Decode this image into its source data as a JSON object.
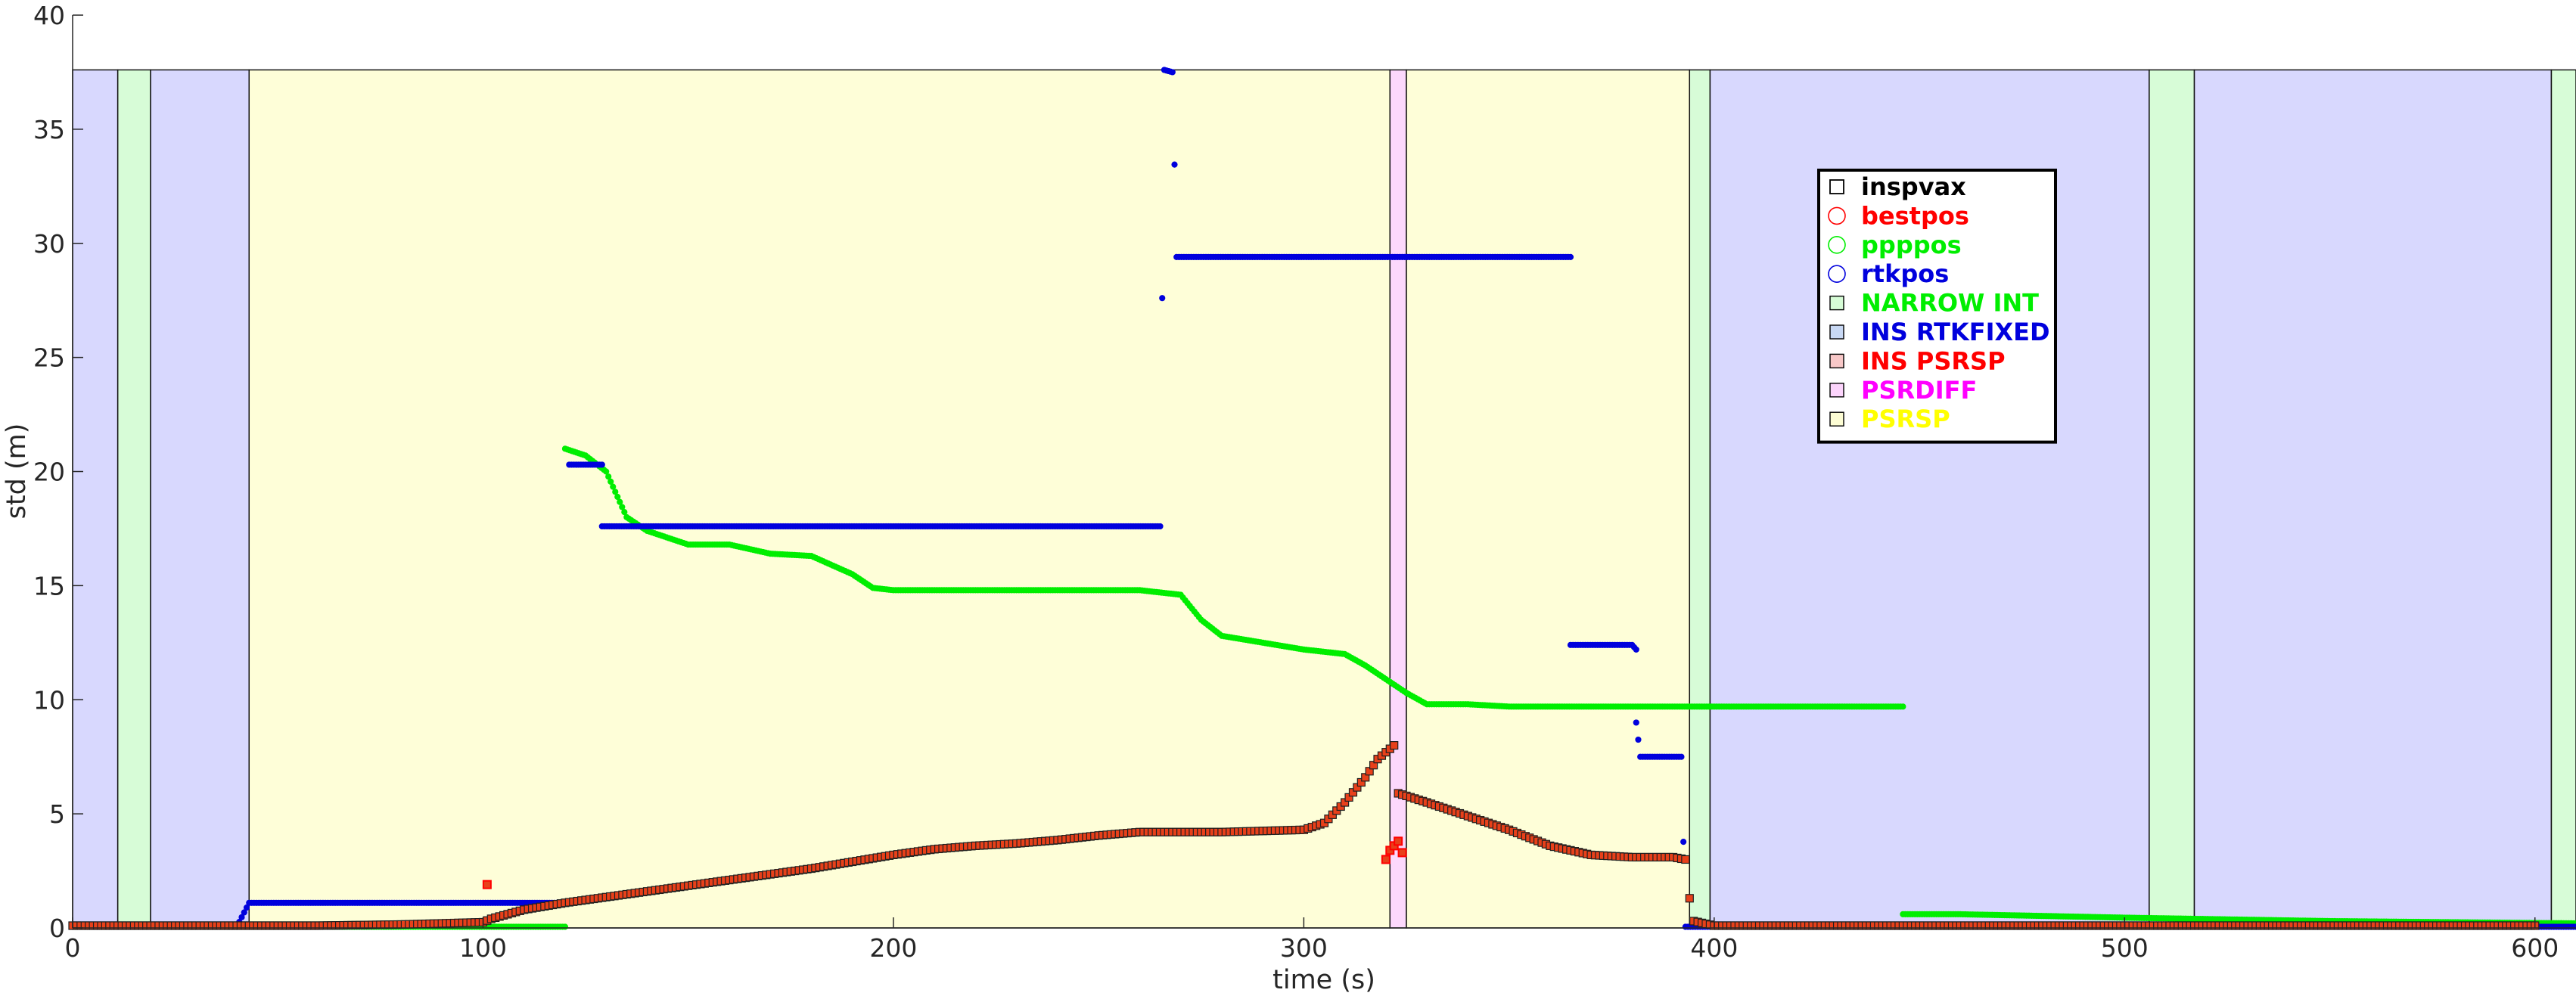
{
  "chart_data": {
    "type": "scatter",
    "title": "",
    "xlabel": "time (s)",
    "ylabel": "std (m)",
    "xlim": [
      0,
      610
    ],
    "ylim": [
      0,
      40
    ],
    "x_ticks": [
      "0",
      "100",
      "200",
      "300",
      "400",
      "500",
      "600"
    ],
    "y_ticks": [
      "0",
      "5",
      "10",
      "15",
      "20",
      "25",
      "30",
      "35",
      "40"
    ],
    "grid": false,
    "legend_position": "upper-center-right",
    "band_top": 37.6,
    "bands": [
      {
        "x0": 0,
        "x1": 11,
        "mode": "INS RTKFIXED"
      },
      {
        "x0": 11,
        "x1": 19,
        "mode": "NARROW INT"
      },
      {
        "x0": 19,
        "x1": 43,
        "mode": "INS RTKFIXED"
      },
      {
        "x0": 43,
        "x1": 321,
        "mode": "PSRSP"
      },
      {
        "x0": 321,
        "x1": 325,
        "mode": "PSRDIFF"
      },
      {
        "x0": 325,
        "x1": 394,
        "mode": "PSRSP"
      },
      {
        "x0": 394,
        "x1": 399,
        "mode": "NARROW INT"
      },
      {
        "x0": 399,
        "x1": 506,
        "mode": "INS RTKFIXED"
      },
      {
        "x0": 506,
        "x1": 517,
        "mode": "NARROW INT"
      },
      {
        "x0": 517,
        "x1": 604,
        "mode": "INS RTKFIXED"
      },
      {
        "x0": 604,
        "x1": 610,
        "mode": "NARROW INT"
      }
    ],
    "series": [
      {
        "name": "inspvax",
        "marker": "square",
        "color": "#000000",
        "points": [
          [
            0,
            0.1
          ],
          [
            20,
            0.1
          ],
          [
            40,
            0.1
          ],
          [
            60,
            0.1
          ],
          [
            80,
            0.15
          ],
          [
            100,
            0.25
          ],
          [
            102,
            0.4
          ],
          [
            110,
            0.8
          ],
          [
            120,
            1.1
          ],
          [
            130,
            1.35
          ],
          [
            140,
            1.6
          ],
          [
            150,
            1.85
          ],
          [
            160,
            2.1
          ],
          [
            170,
            2.35
          ],
          [
            180,
            2.6
          ],
          [
            190,
            2.9
          ],
          [
            200,
            3.2
          ],
          [
            210,
            3.45
          ],
          [
            220,
            3.6
          ],
          [
            230,
            3.7
          ],
          [
            240,
            3.85
          ],
          [
            250,
            4.05
          ],
          [
            260,
            4.2
          ],
          [
            270,
            4.2
          ],
          [
            280,
            4.2
          ],
          [
            290,
            4.25
          ],
          [
            300,
            4.3
          ],
          [
            305,
            4.6
          ],
          [
            310,
            5.5
          ],
          [
            315,
            6.6
          ],
          [
            318,
            7.4
          ],
          [
            320,
            7.7
          ],
          [
            322,
            8.0
          ],
          [
            323,
            5.9
          ],
          [
            330,
            5.5
          ],
          [
            340,
            4.9
          ],
          [
            350,
            4.3
          ],
          [
            360,
            3.6
          ],
          [
            370,
            3.2
          ],
          [
            380,
            3.1
          ],
          [
            390,
            3.1
          ],
          [
            393,
            3.0
          ],
          [
            394,
            1.3
          ],
          [
            395,
            0.3
          ],
          [
            400,
            0.1
          ],
          [
            450,
            0.1
          ],
          [
            500,
            0.1
          ],
          [
            550,
            0.1
          ],
          [
            600,
            0.1
          ]
        ]
      },
      {
        "name": "bestpos",
        "marker": "circle",
        "color": "#ff0000",
        "points": [
          [
            101,
            1.9
          ],
          [
            320,
            3.0
          ],
          [
            321,
            3.4
          ],
          [
            322,
            3.6
          ],
          [
            323,
            3.8
          ],
          [
            324,
            3.3
          ]
        ]
      },
      {
        "name": "ppppos",
        "marker": "circle",
        "color": "#00ee00",
        "points": [
          [
            0,
            0.05
          ],
          [
            40,
            0.05
          ],
          [
            80,
            0.05
          ],
          [
            120,
            0.05
          ],
          [
            120,
            21.0
          ],
          [
            125,
            20.7
          ],
          [
            130,
            20.0
          ],
          [
            135,
            18.0
          ],
          [
            140,
            17.4
          ],
          [
            150,
            16.8
          ],
          [
            160,
            16.8
          ],
          [
            170,
            16.4
          ],
          [
            180,
            16.3
          ],
          [
            190,
            15.5
          ],
          [
            195,
            14.9
          ],
          [
            200,
            14.8
          ],
          [
            220,
            14.8
          ],
          [
            240,
            14.8
          ],
          [
            260,
            14.8
          ],
          [
            270,
            14.6
          ],
          [
            275,
            13.5
          ],
          [
            280,
            12.8
          ],
          [
            290,
            12.5
          ],
          [
            300,
            12.2
          ],
          [
            310,
            12.0
          ],
          [
            315,
            11.5
          ],
          [
            320,
            10.9
          ],
          [
            325,
            10.3
          ],
          [
            330,
            9.8
          ],
          [
            340,
            9.8
          ],
          [
            350,
            9.7
          ],
          [
            370,
            9.7
          ],
          [
            400,
            9.7
          ],
          [
            430,
            9.7
          ],
          [
            446,
            9.7
          ],
          [
            446,
            0.6
          ],
          [
            460,
            0.6
          ],
          [
            500,
            0.45
          ],
          [
            550,
            0.3
          ],
          [
            610,
            0.2
          ]
        ]
      },
      {
        "name": "rtkpos",
        "marker": "circle",
        "color": "#0000dd",
        "points": [
          [
            0,
            0.05
          ],
          [
            20,
            0.05
          ],
          [
            40,
            0.05
          ],
          [
            43,
            1.1
          ],
          [
            70,
            1.1
          ],
          [
            100,
            1.1
          ],
          [
            121,
            1.1
          ],
          [
            121,
            20.3
          ],
          [
            129,
            20.3
          ],
          [
            129,
            17.6
          ],
          [
            160,
            17.6
          ],
          [
            200,
            17.6
          ],
          [
            240,
            17.6
          ],
          [
            265,
            17.6
          ],
          [
            266,
            37.6
          ],
          [
            268,
            37.5
          ],
          [
            269,
            29.4
          ],
          [
            300,
            29.4
          ],
          [
            330,
            29.4
          ],
          [
            365,
            29.4
          ],
          [
            365,
            12.4
          ],
          [
            380,
            12.4
          ],
          [
            381,
            12.2
          ],
          [
            381,
            9.0
          ],
          [
            382,
            7.5
          ],
          [
            392,
            7.5
          ],
          [
            393,
            0.05
          ],
          [
            450,
            0.05
          ],
          [
            500,
            0.05
          ],
          [
            550,
            0.05
          ],
          [
            610,
            0.05
          ]
        ]
      }
    ]
  },
  "legend": {
    "items": [
      {
        "label": "inspvax",
        "color": "#000000",
        "symbol": "square-outline"
      },
      {
        "label": "bestpos",
        "color": "#ff0000",
        "symbol": "circle-outline"
      },
      {
        "label": "ppppos",
        "color": "#00ee00",
        "symbol": "circle-outline"
      },
      {
        "label": "rtkpos",
        "color": "#0000dd",
        "symbol": "circle-outline"
      },
      {
        "label": "NARROW INT",
        "color": "#00ee00",
        "symbol": "patch",
        "fill": "#d6fcd6"
      },
      {
        "label": "INS RTKFIXED",
        "color": "#0000dd",
        "symbol": "patch",
        "fill": "#c8d8f4"
      },
      {
        "label": "INS PSRSP",
        "color": "#ff0000",
        "symbol": "patch",
        "fill": "#f8c8c8"
      },
      {
        "label": "PSRDIFF",
        "color": "#ff00ff",
        "symbol": "patch",
        "fill": "#fcd4fc"
      },
      {
        "label": "PSRSP",
        "color": "#ffff00",
        "symbol": "patch",
        "fill": "#fdfdd4"
      }
    ]
  },
  "colors": {
    "NARROW INT": "#d7fcd7",
    "INS RTKFIXED": "#d8d8fe",
    "PSRDIFF": "#fcd8fc",
    "PSRSP": "#fefed8",
    "inspvax_fill": "#e8401a"
  }
}
